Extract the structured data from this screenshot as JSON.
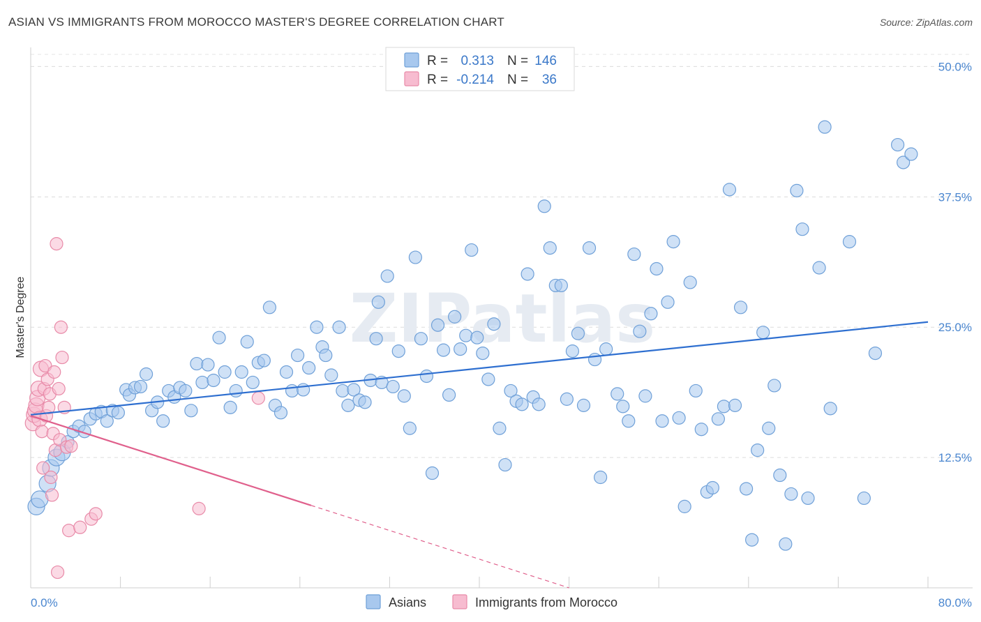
{
  "title": "ASIAN VS IMMIGRANTS FROM MOROCCO MASTER'S DEGREE CORRELATION CHART",
  "source": "Source: ZipAtlas.com",
  "chart_data": {
    "type": "scatter",
    "title": "ASIAN VS IMMIGRANTS FROM MOROCCO MASTER'S DEGREE CORRELATION CHART",
    "xlabel": "",
    "ylabel": "Master's Degree",
    "xlim": [
      0,
      80
    ],
    "ylim": [
      0,
      50
    ],
    "x_tick_labels": [
      "0.0%",
      "80.0%"
    ],
    "y_ticks": [
      {
        "value": 12.5,
        "label": "12.5%"
      },
      {
        "value": 25.0,
        "label": "25.0%"
      },
      {
        "value": 37.5,
        "label": "37.5%"
      },
      {
        "value": 50.0,
        "label": "50.0%"
      }
    ],
    "watermark": "ZIPatlas",
    "stats": [
      {
        "r_label": "R =",
        "r_value": "0.313",
        "n_label": "N =",
        "n_value": "146"
      },
      {
        "r_label": "R =",
        "r_value": "-0.214",
        "n_label": "N =",
        "n_value": "36"
      }
    ],
    "series": [
      {
        "name": "Asians",
        "color": "#a8c8ee",
        "stroke": "#6fa0d8",
        "trend": {
          "x0": 0,
          "y0": 16.6,
          "x1": 80,
          "y1": 25.5,
          "dashed_from": null,
          "color": "#2e6fd0"
        },
        "points": [
          [
            0.5,
            7.8
          ],
          [
            0.8,
            8.5
          ],
          [
            1.5,
            10
          ],
          [
            1.8,
            11.5
          ],
          [
            2.3,
            12.5
          ],
          [
            2.8,
            13
          ],
          [
            3.3,
            14
          ],
          [
            3.8,
            15
          ],
          [
            4.3,
            15.5
          ],
          [
            4.8,
            15
          ],
          [
            5.3,
            16.2
          ],
          [
            5.8,
            16.7
          ],
          [
            6.3,
            16.9
          ],
          [
            6.8,
            16
          ],
          [
            7.3,
            17
          ],
          [
            7.8,
            16.8
          ],
          [
            8.5,
            19
          ],
          [
            8.8,
            18.5
          ],
          [
            9.3,
            19.2
          ],
          [
            9.8,
            19.3
          ],
          [
            10.3,
            20.5
          ],
          [
            10.8,
            17
          ],
          [
            11.3,
            17.8
          ],
          [
            11.8,
            16
          ],
          [
            12.3,
            18.9
          ],
          [
            12.8,
            18.3
          ],
          [
            13.3,
            19.2
          ],
          [
            13.8,
            18.9
          ],
          [
            14.3,
            17
          ],
          [
            14.8,
            21.5
          ],
          [
            15.3,
            19.7
          ],
          [
            15.8,
            21.4
          ],
          [
            16.3,
            19.9
          ],
          [
            16.8,
            24
          ],
          [
            17.3,
            20.7
          ],
          [
            17.8,
            17.3
          ],
          [
            18.3,
            18.9
          ],
          [
            18.8,
            20.7
          ],
          [
            19.3,
            23.6
          ],
          [
            19.8,
            19.7
          ],
          [
            20.3,
            21.6
          ],
          [
            20.8,
            21.8
          ],
          [
            21.3,
            26.9
          ],
          [
            21.8,
            17.5
          ],
          [
            22.3,
            16.8
          ],
          [
            22.8,
            20.7
          ],
          [
            23.3,
            18.9
          ],
          [
            23.8,
            22.3
          ],
          [
            24.3,
            19
          ],
          [
            24.8,
            21.1
          ],
          [
            25.5,
            25
          ],
          [
            26,
            23.1
          ],
          [
            26.3,
            22.3
          ],
          [
            26.8,
            20.4
          ],
          [
            27.5,
            25
          ],
          [
            27.8,
            18.9
          ],
          [
            28.3,
            17.5
          ],
          [
            28.8,
            19
          ],
          [
            29.3,
            18
          ],
          [
            29.8,
            17.8
          ],
          [
            30.3,
            19.9
          ],
          [
            30.8,
            23.9
          ],
          [
            31,
            27.4
          ],
          [
            31.3,
            19.7
          ],
          [
            31.8,
            29.9
          ],
          [
            32.3,
            19.3
          ],
          [
            32.8,
            22.7
          ],
          [
            33.3,
            18.4
          ],
          [
            33.8,
            15.3
          ],
          [
            34.3,
            31.7
          ],
          [
            34.8,
            23.9
          ],
          [
            35.3,
            20.3
          ],
          [
            35.8,
            11
          ],
          [
            36.3,
            25.2
          ],
          [
            36.8,
            22.8
          ],
          [
            37.3,
            18.5
          ],
          [
            37.8,
            26
          ],
          [
            38.3,
            22.9
          ],
          [
            38.8,
            24.2
          ],
          [
            39.3,
            32.4
          ],
          [
            39.8,
            24
          ],
          [
            40.3,
            22.5
          ],
          [
            40.8,
            20
          ],
          [
            41.3,
            25.3
          ],
          [
            41.8,
            15.3
          ],
          [
            42.3,
            11.8
          ],
          [
            42.8,
            18.9
          ],
          [
            43.3,
            17.9
          ],
          [
            43.8,
            17.6
          ],
          [
            44.3,
            30.1
          ],
          [
            44.8,
            18.3
          ],
          [
            45.3,
            17.6
          ],
          [
            45.8,
            36.6
          ],
          [
            46.3,
            32.6
          ],
          [
            46.8,
            29
          ],
          [
            47.3,
            29
          ],
          [
            47.8,
            18.1
          ],
          [
            48.3,
            22.7
          ],
          [
            48.8,
            24.4
          ],
          [
            49.3,
            17.5
          ],
          [
            49.8,
            32.6
          ],
          [
            50.3,
            21.9
          ],
          [
            50.8,
            10.6
          ],
          [
            51.3,
            22.9
          ],
          [
            52.3,
            18.6
          ],
          [
            52.8,
            17.4
          ],
          [
            53.3,
            16
          ],
          [
            53.8,
            32
          ],
          [
            54.3,
            24.6
          ],
          [
            54.8,
            18.4
          ],
          [
            55.3,
            26.3
          ],
          [
            55.8,
            30.6
          ],
          [
            56.3,
            16
          ],
          [
            56.8,
            27.4
          ],
          [
            57.3,
            33.2
          ],
          [
            57.8,
            16.3
          ],
          [
            58.3,
            7.8
          ],
          [
            58.8,
            29.3
          ],
          [
            59.3,
            18.9
          ],
          [
            59.8,
            15.2
          ],
          [
            60.3,
            9.2
          ],
          [
            60.8,
            9.6
          ],
          [
            61.3,
            16.2
          ],
          [
            61.8,
            17.4
          ],
          [
            62.3,
            38.2
          ],
          [
            62.8,
            17.5
          ],
          [
            63.3,
            26.9
          ],
          [
            63.8,
            9.5
          ],
          [
            64.3,
            4.6
          ],
          [
            64.8,
            13.2
          ],
          [
            65.3,
            24.5
          ],
          [
            65.8,
            15.3
          ],
          [
            66.3,
            19.4
          ],
          [
            66.8,
            10.8
          ],
          [
            67.3,
            4.2
          ],
          [
            67.8,
            9
          ],
          [
            68.3,
            38.1
          ],
          [
            68.8,
            34.4
          ],
          [
            69.3,
            8.6
          ],
          [
            70.3,
            30.7
          ],
          [
            70.8,
            44.2
          ],
          [
            71.3,
            17.2
          ],
          [
            73,
            33.2
          ],
          [
            74.3,
            8.6
          ],
          [
            75.3,
            22.5
          ],
          [
            77.3,
            42.5
          ],
          [
            77.8,
            40.8
          ],
          [
            78.5,
            41.6
          ]
        ]
      },
      {
        "name": "Immigrants from Morocco",
        "color": "#f7bcd0",
        "stroke": "#e88aa8",
        "trend": {
          "x0": 0,
          "y0": 16.5,
          "x1": 48,
          "y1": 0,
          "solid_until_x": 25,
          "color": "#e0608c"
        },
        "points": [
          [
            0.2,
            15.8
          ],
          [
            0.3,
            16.6
          ],
          [
            0.4,
            17
          ],
          [
            0.5,
            17.5
          ],
          [
            0.6,
            18.2
          ],
          [
            0.7,
            19.1
          ],
          [
            0.8,
            16.2
          ],
          [
            0.9,
            21
          ],
          [
            1.0,
            15
          ],
          [
            1.1,
            11.5
          ],
          [
            1.2,
            19.1
          ],
          [
            1.3,
            21.3
          ],
          [
            1.4,
            16.5
          ],
          [
            1.5,
            20
          ],
          [
            1.6,
            17.3
          ],
          [
            1.7,
            18.6
          ],
          [
            1.8,
            10.6
          ],
          [
            1.9,
            8.9
          ],
          [
            2.0,
            14.8
          ],
          [
            2.1,
            20.7
          ],
          [
            2.2,
            13.2
          ],
          [
            2.3,
            33
          ],
          [
            2.4,
            1.5
          ],
          [
            2.5,
            19.1
          ],
          [
            2.6,
            14.2
          ],
          [
            2.7,
            25
          ],
          [
            2.8,
            22.1
          ],
          [
            3.0,
            17.3
          ],
          [
            3.2,
            13.5
          ],
          [
            3.4,
            5.5
          ],
          [
            3.6,
            13.6
          ],
          [
            4.4,
            5.8
          ],
          [
            5.4,
            6.6
          ],
          [
            5.8,
            7.1
          ],
          [
            15,
            7.6
          ],
          [
            20.3,
            18.2
          ]
        ]
      }
    ]
  }
}
